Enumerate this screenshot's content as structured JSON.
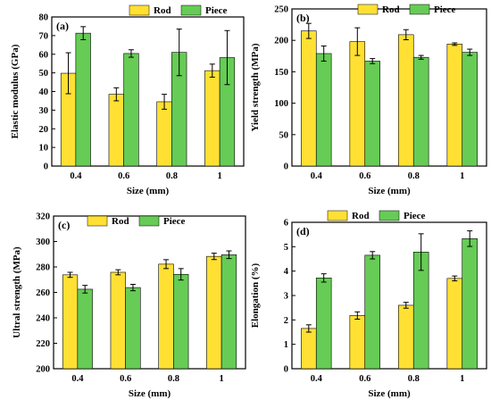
{
  "colors": {
    "rod": "#FFE033",
    "piece": "#66CC55",
    "edge": "#000000"
  },
  "chart_data": [
    {
      "type": "bar",
      "panel_label": "(a)",
      "categories": [
        "0.4",
        "0.6",
        "0.8",
        "1"
      ],
      "xlabel": "Size (mm)",
      "ylabel": "Elastic modulus (GPa)",
      "ylim": [
        0,
        80
      ],
      "yticks": [
        "0",
        "10",
        "20",
        "30",
        "40",
        "50",
        "60",
        "70",
        "80"
      ],
      "legend_position": "top-right",
      "series": [
        {
          "name": "Rod",
          "color": "#FFE033",
          "values": [
            49.8,
            38.5,
            34.5,
            51.2
          ],
          "errors": [
            11,
            3.5,
            4,
            3.5
          ]
        },
        {
          "name": "Piece",
          "color": "#66CC55",
          "values": [
            71.3,
            60.4,
            61.0,
            58.2
          ],
          "errors": [
            3.5,
            2,
            12.5,
            14.5
          ]
        }
      ]
    },
    {
      "type": "bar",
      "panel_label": "(b)",
      "categories": [
        "0.4",
        "0.6",
        "0.8",
        "1"
      ],
      "xlabel": "Size (mm)",
      "ylabel": "Yield strength (MPa)",
      "ylim": [
        0,
        250
      ],
      "yticks": [
        "0",
        "50",
        "100",
        "150",
        "200",
        "250"
      ],
      "legend_position": "top-right",
      "series": [
        {
          "name": "Rod",
          "color": "#FFE033",
          "values": [
            215,
            198,
            209,
            194
          ],
          "errors": [
            12,
            22,
            8,
            2
          ]
        },
        {
          "name": "Piece",
          "color": "#66CC55",
          "values": [
            179,
            167,
            173,
            181
          ],
          "errors": [
            12,
            4,
            3,
            5
          ]
        }
      ]
    },
    {
      "type": "bar",
      "panel_label": "(c)",
      "categories": [
        "0.4",
        "0.6",
        "0.8",
        "1"
      ],
      "xlabel": "Size (mm)",
      "ylabel": "Ultral strength (MPa)",
      "ylim": [
        200,
        320
      ],
      "yticks": [
        "200",
        "220",
        "240",
        "260",
        "280",
        "300",
        "320"
      ],
      "legend_position": "top",
      "series": [
        {
          "name": "Rod",
          "color": "#FFE033",
          "values": [
            273.8,
            275.8,
            282.2,
            288.3
          ],
          "errors": [
            2,
            2,
            3.5,
            2.5
          ]
        },
        {
          "name": "Piece",
          "color": "#66CC55",
          "values": [
            262.5,
            263.8,
            274.2,
            289.6
          ],
          "errors": [
            3,
            2.5,
            4.5,
            3
          ]
        }
      ]
    },
    {
      "type": "bar",
      "panel_label": "(d)",
      "categories": [
        "0.4",
        "0.6",
        "0.8",
        "1"
      ],
      "xlabel": "Size (mm)",
      "ylabel": "Elongation (%)",
      "ylim": [
        0,
        6
      ],
      "yticks": [
        "0",
        "1",
        "2",
        "3",
        "4",
        "5",
        "6"
      ],
      "legend_position": "top",
      "series": [
        {
          "name": "Rod",
          "color": "#FFE033",
          "values": [
            1.65,
            2.18,
            2.6,
            3.7
          ],
          "errors": [
            0.15,
            0.15,
            0.12,
            0.1
          ]
        },
        {
          "name": "Piece",
          "color": "#66CC55",
          "values": [
            3.72,
            4.65,
            4.78,
            5.33
          ],
          "errors": [
            0.17,
            0.15,
            0.75,
            0.32
          ]
        }
      ]
    }
  ]
}
